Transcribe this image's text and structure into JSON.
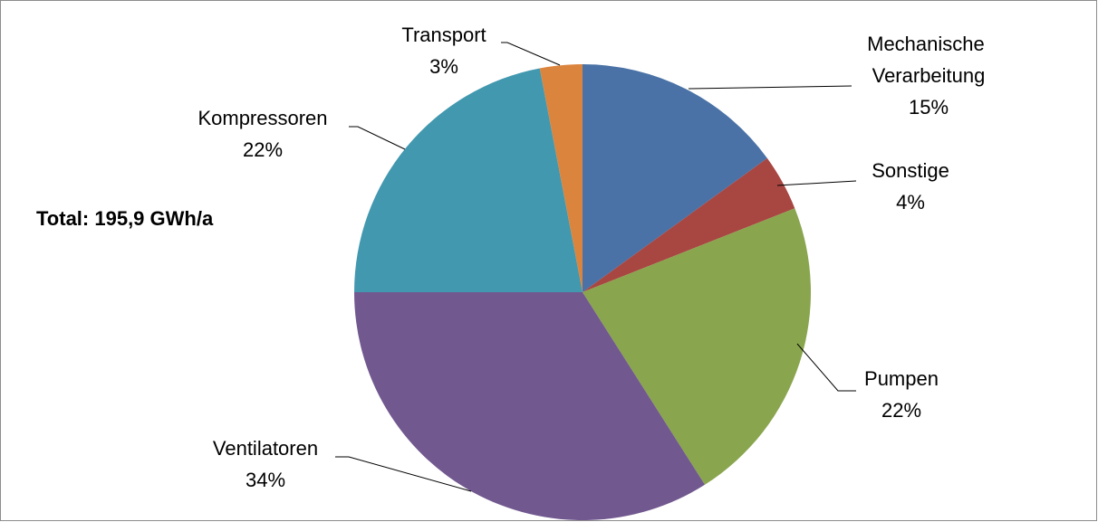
{
  "chart_data": {
    "type": "pie",
    "annotation": "Total: 195,9 GWh/a",
    "categories": [
      "Mechanische Verarbeitung",
      "Sonstige",
      "Pumpen",
      "Ventilatoren",
      "Kompressoren",
      "Transport"
    ],
    "values": [
      15,
      4,
      22,
      34,
      22,
      3
    ],
    "value_labels": [
      "15%",
      "4%",
      "22%",
      "34%",
      "22%",
      "3%"
    ],
    "colors": [
      "#4a72a6",
      "#a84642",
      "#89a54e",
      "#71588f",
      "#4198af",
      "#db843d"
    ]
  }
}
